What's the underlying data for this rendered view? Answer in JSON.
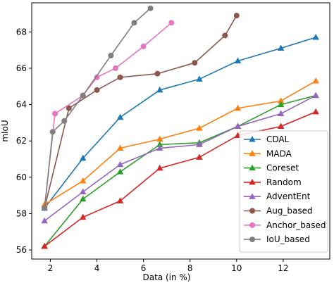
{
  "chart_data": {
    "type": "line",
    "xlabel": "Data (in %)",
    "ylabel": "mIoU",
    "xlim": [
      1.2,
      14.0
    ],
    "ylim": [
      55.5,
      69.6
    ],
    "xticks": [
      2,
      4,
      6,
      8,
      10,
      12
    ],
    "yticks": [
      56,
      58,
      60,
      62,
      64,
      66,
      68
    ],
    "grid": false,
    "legend_position": "lower-right",
    "series": [
      {
        "name": "CDAL",
        "color": "#1f77b4",
        "marker": "triangle-up",
        "x": [
          1.75,
          3.4,
          5.0,
          6.7,
          8.4,
          10.05,
          11.9,
          13.4
        ],
        "y": [
          58.3,
          61.05,
          63.3,
          64.8,
          65.4,
          66.4,
          67.1,
          67.7
        ]
      },
      {
        "name": "MADA",
        "color": "#ff7f0e",
        "marker": "triangle-up",
        "x": [
          1.75,
          3.4,
          5.0,
          6.7,
          8.4,
          10.05,
          11.9,
          13.4
        ],
        "y": [
          58.5,
          59.8,
          61.6,
          62.1,
          62.7,
          63.8,
          64.2,
          65.3
        ]
      },
      {
        "name": "Coreset",
        "color": "#2ca02c",
        "marker": "triangle-up",
        "x": [
          1.75,
          3.4,
          5.0,
          6.7,
          8.4,
          10.05,
          11.9,
          13.4
        ],
        "y": [
          56.2,
          58.8,
          60.3,
          61.8,
          61.9,
          62.8,
          64.0,
          64.5
        ]
      },
      {
        "name": "Random",
        "color": "#d62728",
        "marker": "triangle-up",
        "x": [
          1.75,
          3.4,
          5.0,
          6.7,
          8.4,
          10.05,
          11.9,
          13.4
        ],
        "y": [
          56.2,
          57.8,
          58.7,
          60.5,
          61.1,
          62.3,
          62.8,
          63.6
        ]
      },
      {
        "name": "AdventEnt",
        "color": "#9467bd",
        "marker": "triangle-up",
        "x": [
          1.75,
          3.4,
          5.0,
          6.7,
          8.4,
          10.05,
          11.9,
          13.4
        ],
        "y": [
          57.6,
          59.2,
          60.7,
          61.6,
          61.8,
          62.8,
          63.5,
          64.5
        ]
      },
      {
        "name": "Aug_based",
        "color": "#8c564b",
        "marker": "circle",
        "x": [
          1.75,
          2.8,
          4.0,
          5.0,
          6.6,
          8.2,
          9.5,
          10.0
        ],
        "y": [
          58.3,
          63.8,
          64.8,
          65.5,
          65.7,
          66.3,
          67.8,
          68.9
        ]
      },
      {
        "name": "Anchor_based",
        "color": "#e377c2",
        "marker": "circle",
        "x": [
          1.75,
          2.2,
          3.4,
          4.0,
          4.8,
          6.0,
          7.2
        ],
        "y": [
          58.3,
          63.5,
          64.5,
          65.5,
          66.0,
          67.2,
          68.5
        ]
      },
      {
        "name": "IoU_based",
        "color": "#7f7f7f",
        "marker": "circle",
        "x": [
          1.75,
          2.1,
          2.6,
          3.4,
          4.6,
          5.6,
          6.3
        ],
        "y": [
          58.3,
          62.5,
          63.1,
          64.5,
          66.7,
          68.5,
          69.3
        ]
      }
    ]
  }
}
